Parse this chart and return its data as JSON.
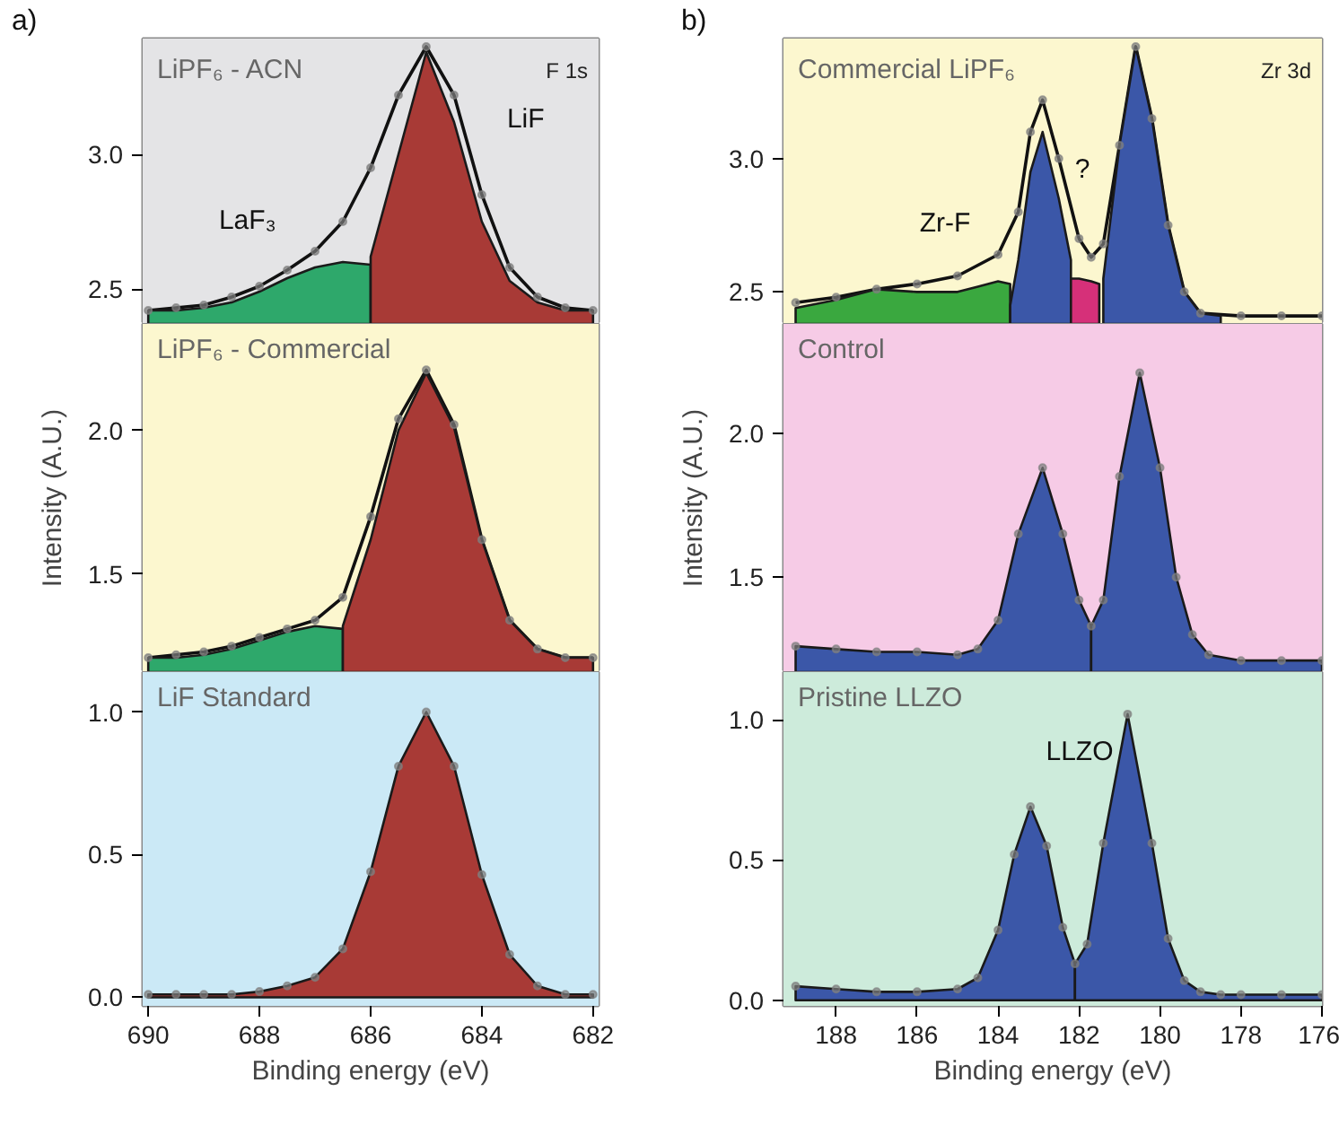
{
  "chart_data": [
    {
      "type": "area",
      "title": "LiPF₆ - ACN",
      "subtitle": "F 1s",
      "annotations": [
        "a)",
        "LaF₃",
        "LiF"
      ],
      "x": [
        690,
        689.5,
        689,
        688.5,
        688,
        687.5,
        687,
        686.5,
        686,
        685.5,
        685,
        684.5,
        684,
        683.5,
        683,
        682.5,
        682
      ],
      "xlim": [
        690.1,
        681.9
      ],
      "ylim": [
        2.37,
        3.43
      ],
      "yticks": [
        {
          "value": 2.5,
          "label": "2.5"
        },
        {
          "value": 3.0,
          "label": "3.0"
        }
      ],
      "tick_labels": "y",
      "bands": [
        {
          "axis": "y",
          "from": 2.37,
          "to": 3.43,
          "color": "#e4e4e6"
        }
      ],
      "series": [
        {
          "type": "line",
          "line_style": "solid",
          "color": "#111111",
          "values": [
            2.42,
            2.43,
            2.44,
            2.47,
            2.51,
            2.57,
            2.64,
            2.75,
            2.95,
            3.22,
            3.4,
            3.22,
            2.85,
            2.58,
            2.47,
            2.43,
            2.42
          ]
        },
        {
          "color": "#2ea86b",
          "x": [
            690,
            689.5,
            689,
            688.5,
            688,
            687.5,
            687,
            686.5,
            686
          ],
          "values": [
            2.42,
            2.42,
            2.43,
            2.45,
            2.49,
            2.54,
            2.58,
            2.6,
            2.59
          ]
        },
        {
          "color": "#a83a36",
          "x": [
            686,
            685.5,
            685,
            684.5,
            684,
            683.5,
            683,
            682.5,
            682
          ],
          "values": [
            2.62,
            3.0,
            3.38,
            3.12,
            2.75,
            2.53,
            2.45,
            2.42,
            2.42
          ]
        },
        {
          "type": "scatter",
          "marker": "circle",
          "color": "#7f7f7f",
          "values": [
            2.42,
            2.43,
            2.44,
            2.47,
            2.51,
            2.57,
            2.64,
            2.75,
            2.95,
            3.22,
            3.4,
            3.22,
            2.85,
            2.58,
            2.47,
            2.43,
            2.42
          ]
        }
      ]
    },
    {
      "type": "area",
      "title": "LiPF₆ - Commercial",
      "ylabel": "Intensity (A.U.)",
      "x": [
        690,
        689.5,
        689,
        688.5,
        688,
        687.5,
        687,
        686.5,
        686,
        685.5,
        685,
        684.5,
        684,
        683.5,
        683,
        682.5,
        682
      ],
      "xlim": [
        690.1,
        681.9
      ],
      "ylim": [
        1.16,
        2.37
      ],
      "yticks": [
        {
          "value": 1.5,
          "label": "1.5"
        },
        {
          "value": 2.0,
          "label": "2.0"
        }
      ],
      "tick_labels": "y",
      "bands": [
        {
          "axis": "y",
          "from": 1.16,
          "to": 2.37,
          "color": "#fcf7cf"
        }
      ],
      "series": [
        {
          "type": "line",
          "line_style": "solid",
          "color": "#111111",
          "values": [
            1.21,
            1.22,
            1.23,
            1.25,
            1.28,
            1.31,
            1.34,
            1.42,
            1.7,
            2.04,
            2.21,
            2.02,
            1.62,
            1.34,
            1.24,
            1.21,
            1.21
          ]
        },
        {
          "color": "#2ea86b",
          "x": [
            690,
            689.5,
            689,
            688.5,
            688,
            687.5,
            687,
            686.5
          ],
          "values": [
            1.21,
            1.21,
            1.22,
            1.24,
            1.27,
            1.3,
            1.32,
            1.31
          ]
        },
        {
          "color": "#a83a36",
          "x": [
            686.5,
            686,
            685.5,
            685,
            684.5,
            684,
            683.5,
            683,
            682.5,
            682
          ],
          "values": [
            1.32,
            1.62,
            2.0,
            2.2,
            2.01,
            1.62,
            1.34,
            1.24,
            1.21,
            1.21
          ]
        },
        {
          "type": "scatter",
          "marker": "circle",
          "color": "#7f7f7f",
          "values": [
            1.21,
            1.22,
            1.23,
            1.25,
            1.28,
            1.31,
            1.34,
            1.42,
            1.7,
            2.04,
            2.21,
            2.02,
            1.62,
            1.34,
            1.24,
            1.21,
            1.21
          ]
        }
      ]
    },
    {
      "type": "area",
      "title": "LiF Standard",
      "xlabel": "Binding energy (eV)",
      "x": [
        690,
        689.5,
        689,
        688.5,
        688,
        687.5,
        687,
        686.5,
        686,
        685.5,
        685,
        684.5,
        684,
        683.5,
        683,
        682.5,
        682
      ],
      "xlim": [
        690.1,
        681.9
      ],
      "xticks": [
        690,
        688,
        686,
        684,
        682
      ],
      "ylim": [
        -0.03,
        1.14
      ],
      "yticks": [
        {
          "value": 0,
          "label": "0.0"
        },
        {
          "value": 0.5,
          "label": "0.5"
        },
        {
          "value": 1.0,
          "label": "1.0"
        }
      ],
      "bands": [
        {
          "axis": "y",
          "from": -0.03,
          "to": 1.14,
          "color": "#cbe9f6"
        }
      ],
      "series": [
        {
          "color": "#a83a36",
          "values": [
            0.01,
            0.01,
            0.01,
            0.01,
            0.02,
            0.04,
            0.07,
            0.17,
            0.44,
            0.81,
            1.0,
            0.81,
            0.43,
            0.15,
            0.04,
            0.01,
            0.01
          ]
        },
        {
          "type": "scatter",
          "marker": "circle",
          "color": "#7f7f7f",
          "values": [
            0.01,
            0.01,
            0.01,
            0.01,
            0.02,
            0.04,
            0.07,
            0.17,
            0.44,
            0.81,
            1.0,
            0.81,
            0.43,
            0.15,
            0.04,
            0.01,
            0.01
          ]
        }
      ]
    },
    {
      "type": "area",
      "title": "Commercial LiPF₆",
      "subtitle": "Zr 3d",
      "annotations": [
        "b)",
        "Zr-F",
        "?"
      ],
      "x": [
        189,
        188,
        187,
        186,
        185,
        184,
        183.5,
        183.2,
        182.9,
        182.5,
        182,
        181.7,
        181.4,
        181,
        180.6,
        180.2,
        179.8,
        179.4,
        179,
        178,
        177,
        176
      ],
      "xlim": [
        189.3,
        176
      ],
      "ylim": [
        2.38,
        3.45
      ],
      "yticks": [
        {
          "value": 2.5,
          "label": "2.5"
        },
        {
          "value": 3.0,
          "label": "3.0"
        }
      ],
      "tick_labels": "y",
      "bands": [
        {
          "axis": "y",
          "from": 2.38,
          "to": 3.45,
          "color": "#fcf7cf"
        }
      ],
      "series": [
        {
          "type": "line",
          "line_style": "solid",
          "color": "#111111",
          "values": [
            2.46,
            2.48,
            2.51,
            2.53,
            2.56,
            2.64,
            2.8,
            3.1,
            3.22,
            3.0,
            2.7,
            2.63,
            2.68,
            3.05,
            3.42,
            3.15,
            2.75,
            2.5,
            2.42,
            2.41,
            2.41,
            2.41
          ]
        },
        {
          "color": "#3aa83f",
          "x": [
            189,
            188,
            187,
            186,
            185,
            184.5,
            184,
            183.7
          ],
          "values": [
            2.44,
            2.47,
            2.51,
            2.5,
            2.5,
            2.52,
            2.54,
            2.53
          ]
        },
        {
          "color": "#3b57a8",
          "x": [
            183.7,
            183.5,
            183.2,
            182.9,
            182.5,
            182.2
          ],
          "values": [
            2.45,
            2.62,
            2.95,
            3.1,
            2.85,
            2.62
          ]
        },
        {
          "color": "#d63079",
          "x": [
            182.2,
            182,
            181.7,
            181.5
          ],
          "values": [
            2.55,
            2.55,
            2.54,
            2.53
          ]
        },
        {
          "color": "#3b57a8",
          "x": [
            181.4,
            181,
            180.6,
            180.2,
            179.8,
            179.4,
            179,
            178.5
          ],
          "values": [
            2.55,
            3.05,
            3.42,
            3.15,
            2.75,
            2.5,
            2.42,
            2.41
          ]
        },
        {
          "type": "scatter",
          "marker": "circle",
          "color": "#7f7f7f",
          "values": [
            2.46,
            2.48,
            2.51,
            2.53,
            2.56,
            2.64,
            2.8,
            3.1,
            3.22,
            3.0,
            2.7,
            2.63,
            2.68,
            3.05,
            3.42,
            3.15,
            2.75,
            2.5,
            2.42,
            2.41,
            2.41,
            2.41
          ]
        }
      ]
    },
    {
      "type": "area",
      "title": "Control",
      "ylabel": "Intensity (A.U.)",
      "x": [
        189,
        188,
        187,
        186,
        185,
        184.5,
        184,
        183.5,
        182.9,
        182.4,
        182,
        181.7,
        181.4,
        181,
        180.5,
        180,
        179.6,
        179.2,
        178.8,
        178,
        177,
        176
      ],
      "xlim": [
        189.3,
        176
      ],
      "ylim": [
        1.17,
        2.38
      ],
      "yticks": [
        {
          "value": 1.5,
          "label": "1.5"
        },
        {
          "value": 2.0,
          "label": "2.0"
        }
      ],
      "tick_labels": "y",
      "bands": [
        {
          "axis": "y",
          "from": 1.17,
          "to": 2.38,
          "color": "#f6cbe6"
        }
      ],
      "series": [
        {
          "color": "#3b57a8",
          "x": [
            189,
            188,
            187,
            186,
            185,
            184.5,
            184,
            183.5,
            182.9,
            182.4,
            182,
            181.7
          ],
          "values": [
            1.26,
            1.25,
            1.24,
            1.24,
            1.23,
            1.25,
            1.35,
            1.65,
            1.88,
            1.65,
            1.42,
            1.33
          ]
        },
        {
          "color": "#3b57a8",
          "x": [
            181.7,
            181.4,
            181,
            180.5,
            180,
            179.6,
            179.2,
            178.8,
            178,
            177,
            176
          ],
          "values": [
            1.33,
            1.42,
            1.85,
            2.21,
            1.88,
            1.5,
            1.3,
            1.23,
            1.21,
            1.21,
            1.21
          ]
        },
        {
          "type": "scatter",
          "marker": "circle",
          "color": "#7f7f7f",
          "values": [
            1.26,
            1.25,
            1.24,
            1.24,
            1.23,
            1.25,
            1.35,
            1.65,
            1.88,
            1.65,
            1.42,
            1.33,
            1.42,
            1.85,
            2.21,
            1.88,
            1.5,
            1.3,
            1.23,
            1.21,
            1.21,
            1.21
          ]
        }
      ]
    },
    {
      "type": "area",
      "title": "Pristine LLZO",
      "xlabel": "Binding energy (eV)",
      "annotations": [
        "LLZO"
      ],
      "x": [
        189,
        188,
        187,
        186,
        185,
        184.5,
        184,
        183.6,
        183.2,
        182.8,
        182.4,
        182.1,
        181.8,
        181.4,
        180.8,
        180.2,
        179.8,
        179.4,
        179,
        178.5,
        178,
        177,
        176
      ],
      "xlim": [
        189.3,
        176
      ],
      "xticks": [
        188,
        186,
        184,
        182,
        180,
        178,
        176
      ],
      "ylim": [
        -0.02,
        1.17
      ],
      "yticks": [
        {
          "value": 0,
          "label": "0.0"
        },
        {
          "value": 0.5,
          "label": "0.5"
        },
        {
          "value": 1.0,
          "label": "1.0"
        }
      ],
      "bands": [
        {
          "axis": "y",
          "from": -0.02,
          "to": 1.17,
          "color": "#cdebdb"
        }
      ],
      "series": [
        {
          "color": "#3b57a8",
          "x": [
            189,
            188,
            187,
            186,
            185,
            184.5,
            184,
            183.6,
            183.2,
            182.8,
            182.4,
            182.1
          ],
          "values": [
            0.05,
            0.04,
            0.03,
            0.03,
            0.04,
            0.08,
            0.25,
            0.52,
            0.69,
            0.55,
            0.26,
            0.13
          ]
        },
        {
          "color": "#3b57a8",
          "x": [
            182.1,
            181.8,
            181.4,
            180.8,
            180.2,
            179.8,
            179.4,
            179,
            178.5,
            178,
            177,
            176
          ],
          "values": [
            0.13,
            0.2,
            0.56,
            1.02,
            0.56,
            0.22,
            0.07,
            0.03,
            0.02,
            0.02,
            0.02,
            0.02
          ]
        },
        {
          "type": "scatter",
          "marker": "circle",
          "color": "#7f7f7f",
          "values": [
            0.05,
            0.04,
            0.03,
            0.03,
            0.04,
            0.08,
            0.25,
            0.52,
            0.69,
            0.55,
            0.26,
            0.13,
            0.2,
            0.56,
            1.02,
            0.56,
            0.22,
            0.07,
            0.03,
            0.02,
            0.02,
            0.02,
            0.02
          ]
        }
      ]
    }
  ]
}
